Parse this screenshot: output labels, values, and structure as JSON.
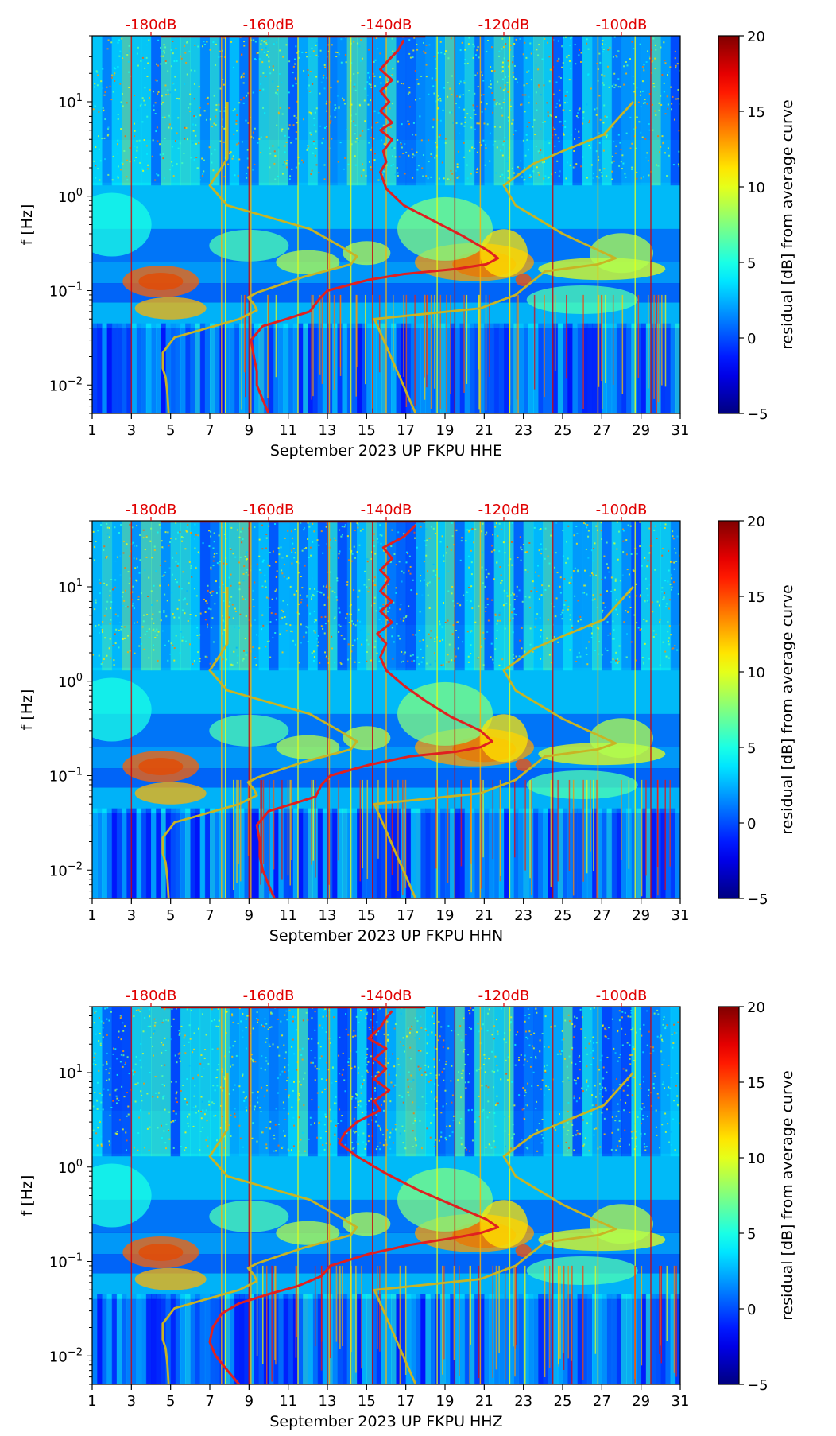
{
  "chart_data": [
    {
      "type": "heatmap",
      "title": "",
      "xlabel": "September 2023 UP FKPU  HHE",
      "ylabel": "f [Hz]",
      "x_ticks": [
        "1",
        "3",
        "5",
        "7",
        "9",
        "11",
        "13",
        "15",
        "17",
        "19",
        "21",
        "23",
        "25",
        "27",
        "29",
        "31"
      ],
      "xlim": [
        1,
        31
      ],
      "ylim": [
        0.005,
        50
      ],
      "y_ticks": [
        {
          "value": 0.01,
          "base": "10",
          "exp": "−2"
        },
        {
          "value": 0.1,
          "base": "10",
          "exp": "−1"
        },
        {
          "value": 1,
          "base": "10",
          "exp": "0"
        },
        {
          "value": 10,
          "base": "10",
          "exp": "1"
        }
      ],
      "db_axis": {
        "labels": [
          "-180dB",
          "-160dB",
          "-140dB",
          "-120dB",
          "-100dB"
        ],
        "values": [
          -180,
          -160,
          -140,
          -120,
          -100
        ],
        "range": [
          -190,
          -90
        ]
      },
      "colorbar": {
        "label": "residual [dB] from average curve",
        "range": [
          -5,
          20
        ],
        "ticks": [
          "20",
          "15",
          "10",
          "5",
          "0",
          "−5"
        ]
      },
      "series": [
        {
          "name": "low-noise model (yellow)",
          "color": "#c8b424",
          "points": [
            [
              -177,
              0.005
            ],
            [
              -177.2,
              0.008
            ],
            [
              -177.5,
              0.012
            ],
            [
              -178,
              0.015
            ],
            [
              -178,
              0.022
            ],
            [
              -176,
              0.032
            ],
            [
              -165,
              0.05
            ],
            [
              -162,
              0.062
            ],
            [
              -162.5,
              0.072
            ],
            [
              -163.5,
              0.085
            ],
            [
              -162,
              0.095
            ],
            [
              -154,
              0.14
            ],
            [
              -146,
              0.19
            ],
            [
              -145,
              0.23
            ],
            [
              -148,
              0.3
            ],
            [
              -153,
              0.45
            ],
            [
              -167,
              0.8
            ],
            [
              -170,
              1.3
            ],
            [
              -167,
              2.5
            ],
            [
              -167,
              5
            ],
            [
              -167,
              10
            ]
          ]
        },
        {
          "name": "high-noise model (yellow)",
          "color": "#c8b424",
          "points": [
            [
              -135,
              0.005
            ],
            [
              -142,
              0.05
            ],
            [
              -124,
              0.065
            ],
            [
              -118,
              0.09
            ],
            [
              -113,
              0.16
            ],
            [
              -104,
              0.19
            ],
            [
              -101,
              0.22
            ],
            [
              -110,
              0.4
            ],
            [
              -118,
              0.8
            ],
            [
              -120,
              1.3
            ],
            [
              -115,
              2.2
            ],
            [
              -110,
              3
            ],
            [
              -103,
              4.5
            ],
            [
              -98,
              10
            ]
          ]
        },
        {
          "name": "median PSD (red)",
          "color": "#e02020",
          "points": [
            [
              -160,
              0.005
            ],
            [
              -161,
              0.007
            ],
            [
              -162,
              0.01
            ],
            [
              -162,
              0.014
            ],
            [
              -162.5,
              0.02
            ],
            [
              -163,
              0.03
            ],
            [
              -161,
              0.042
            ],
            [
              -157,
              0.05
            ],
            [
              -153,
              0.06
            ],
            [
              -151.5,
              0.08
            ],
            [
              -150,
              0.1
            ],
            [
              -143,
              0.13
            ],
            [
              -137,
              0.15
            ],
            [
              -128,
              0.17
            ],
            [
              -123,
              0.19
            ],
            [
              -121,
              0.22
            ],
            [
              -122.5,
              0.26
            ],
            [
              -127,
              0.38
            ],
            [
              -132,
              0.55
            ],
            [
              -137,
              0.8
            ],
            [
              -140,
              1.2
            ],
            [
              -141,
              1.8
            ],
            [
              -140,
              2.3
            ],
            [
              -140.5,
              3
            ],
            [
              -139,
              4
            ],
            [
              -141,
              5
            ],
            [
              -139,
              6
            ],
            [
              -141,
              8
            ],
            [
              -139.5,
              10
            ],
            [
              -141,
              13
            ],
            [
              -139,
              17
            ],
            [
              -141,
              22
            ],
            [
              -139.5,
              28
            ],
            [
              -138,
              35
            ],
            [
              -137,
              45
            ]
          ]
        }
      ]
    },
    {
      "type": "heatmap",
      "title": "",
      "xlabel": "September 2023 UP FKPU  HHN",
      "ylabel": "f [Hz]",
      "x_ticks": [
        "1",
        "3",
        "5",
        "7",
        "9",
        "11",
        "13",
        "15",
        "17",
        "19",
        "21",
        "23",
        "25",
        "27",
        "29",
        "31"
      ],
      "xlim": [
        1,
        31
      ],
      "ylim": [
        0.005,
        50
      ],
      "y_ticks": [
        {
          "value": 0.01,
          "base": "10",
          "exp": "−2"
        },
        {
          "value": 0.1,
          "base": "10",
          "exp": "−1"
        },
        {
          "value": 1,
          "base": "10",
          "exp": "0"
        },
        {
          "value": 10,
          "base": "10",
          "exp": "1"
        }
      ],
      "db_axis": {
        "labels": [
          "-180dB",
          "-160dB",
          "-140dB",
          "-120dB",
          "-100dB"
        ],
        "values": [
          -180,
          -160,
          -140,
          -120,
          -100
        ],
        "range": [
          -190,
          -90
        ]
      },
      "colorbar": {
        "label": "residual [dB] from average curve",
        "range": [
          -5,
          20
        ],
        "ticks": [
          "20",
          "15",
          "10",
          "5",
          "0",
          "−5"
        ]
      },
      "series": [
        {
          "name": "low-noise model (yellow)",
          "color": "#c8b424",
          "points": [
            [
              -177,
              0.005
            ],
            [
              -177.2,
              0.008
            ],
            [
              -177.5,
              0.012
            ],
            [
              -178,
              0.015
            ],
            [
              -178,
              0.022
            ],
            [
              -176,
              0.032
            ],
            [
              -165,
              0.05
            ],
            [
              -162,
              0.062
            ],
            [
              -162.5,
              0.072
            ],
            [
              -163.5,
              0.085
            ],
            [
              -162,
              0.095
            ],
            [
              -154,
              0.14
            ],
            [
              -146,
              0.19
            ],
            [
              -145,
              0.23
            ],
            [
              -148,
              0.3
            ],
            [
              -153,
              0.45
            ],
            [
              -167,
              0.8
            ],
            [
              -170,
              1.3
            ],
            [
              -167,
              2.5
            ],
            [
              -167,
              5
            ],
            [
              -167,
              10
            ]
          ]
        },
        {
          "name": "high-noise model (yellow)",
          "color": "#c8b424",
          "points": [
            [
              -135,
              0.005
            ],
            [
              -142,
              0.05
            ],
            [
              -124,
              0.065
            ],
            [
              -118,
              0.09
            ],
            [
              -113,
              0.16
            ],
            [
              -104,
              0.19
            ],
            [
              -101,
              0.22
            ],
            [
              -110,
              0.4
            ],
            [
              -118,
              0.8
            ],
            [
              -120,
              1.3
            ],
            [
              -115,
              2.2
            ],
            [
              -110,
              3
            ],
            [
              -103,
              4.5
            ],
            [
              -98,
              10
            ]
          ]
        },
        {
          "name": "median PSD (red)",
          "color": "#e02020",
          "points": [
            [
              -159,
              0.005
            ],
            [
              -160,
              0.007
            ],
            [
              -161,
              0.01
            ],
            [
              -161.5,
              0.014
            ],
            [
              -161.5,
              0.02
            ],
            [
              -162,
              0.03
            ],
            [
              -160,
              0.042
            ],
            [
              -156,
              0.05
            ],
            [
              -152,
              0.06
            ],
            [
              -151,
              0.08
            ],
            [
              -149.5,
              0.1
            ],
            [
              -143,
              0.13
            ],
            [
              -136,
              0.16
            ],
            [
              -128,
              0.18
            ],
            [
              -124,
              0.2
            ],
            [
              -122,
              0.23
            ],
            [
              -124,
              0.3
            ],
            [
              -129,
              0.42
            ],
            [
              -133,
              0.6
            ],
            [
              -137,
              0.9
            ],
            [
              -140,
              1.3
            ],
            [
              -141,
              1.8
            ],
            [
              -140,
              2.5
            ],
            [
              -141.5,
              3.2
            ],
            [
              -139,
              4.2
            ],
            [
              -141,
              5.5
            ],
            [
              -139,
              7
            ],
            [
              -141,
              9
            ],
            [
              -139.5,
              12
            ],
            [
              -141,
              15
            ],
            [
              -139,
              20
            ],
            [
              -140.5,
              26
            ],
            [
              -137,
              34
            ],
            [
              -135,
              45
            ]
          ]
        }
      ]
    },
    {
      "type": "heatmap",
      "title": "",
      "xlabel": "September 2023 UP FKPU  HHZ",
      "ylabel": "f [Hz]",
      "x_ticks": [
        "1",
        "3",
        "5",
        "7",
        "9",
        "11",
        "13",
        "15",
        "17",
        "19",
        "21",
        "23",
        "25",
        "27",
        "29",
        "31"
      ],
      "xlim": [
        1,
        31
      ],
      "ylim": [
        0.005,
        50
      ],
      "y_ticks": [
        {
          "value": 0.01,
          "base": "10",
          "exp": "−2"
        },
        {
          "value": 0.1,
          "base": "10",
          "exp": "−1"
        },
        {
          "value": 1,
          "base": "10",
          "exp": "0"
        },
        {
          "value": 10,
          "base": "10",
          "exp": "1"
        }
      ],
      "db_axis": {
        "labels": [
          "-180dB",
          "-160dB",
          "-140dB",
          "-120dB",
          "-100dB"
        ],
        "values": [
          -180,
          -160,
          -140,
          -120,
          -100
        ],
        "range": [
          -190,
          -90
        ]
      },
      "colorbar": {
        "label": "residual [dB] from average curve",
        "range": [
          -5,
          20
        ],
        "ticks": [
          "20",
          "15",
          "10",
          "5",
          "0",
          "−5"
        ]
      },
      "series": [
        {
          "name": "low-noise model (yellow)",
          "color": "#c8b424",
          "points": [
            [
              -177,
              0.005
            ],
            [
              -177.2,
              0.008
            ],
            [
              -177.5,
              0.012
            ],
            [
              -178,
              0.015
            ],
            [
              -178,
              0.022
            ],
            [
              -176,
              0.032
            ],
            [
              -165,
              0.05
            ],
            [
              -162,
              0.062
            ],
            [
              -162.5,
              0.072
            ],
            [
              -163.5,
              0.085
            ],
            [
              -162,
              0.095
            ],
            [
              -154,
              0.14
            ],
            [
              -146,
              0.19
            ],
            [
              -145,
              0.23
            ],
            [
              -148,
              0.3
            ],
            [
              -153,
              0.45
            ],
            [
              -167,
              0.8
            ],
            [
              -170,
              1.3
            ],
            [
              -167,
              2.5
            ],
            [
              -167,
              5
            ],
            [
              -167,
              10
            ]
          ]
        },
        {
          "name": "high-noise model (yellow)",
          "color": "#c8b424",
          "points": [
            [
              -135,
              0.005
            ],
            [
              -142,
              0.05
            ],
            [
              -124,
              0.065
            ],
            [
              -118,
              0.09
            ],
            [
              -113,
              0.16
            ],
            [
              -104,
              0.19
            ],
            [
              -101,
              0.22
            ],
            [
              -110,
              0.4
            ],
            [
              -118,
              0.8
            ],
            [
              -120,
              1.3
            ],
            [
              -115,
              2.2
            ],
            [
              -110,
              3
            ],
            [
              -103,
              4.5
            ],
            [
              -98,
              10
            ]
          ]
        },
        {
          "name": "median PSD (red)",
          "color": "#e02020",
          "points": [
            [
              -165,
              0.005
            ],
            [
              -167,
              0.007
            ],
            [
              -169,
              0.01
            ],
            [
              -170,
              0.014
            ],
            [
              -169.5,
              0.02
            ],
            [
              -168,
              0.028
            ],
            [
              -165,
              0.036
            ],
            [
              -160,
              0.045
            ],
            [
              -155,
              0.055
            ],
            [
              -151,
              0.07
            ],
            [
              -149.5,
              0.09
            ],
            [
              -143,
              0.12
            ],
            [
              -136,
              0.15
            ],
            [
              -128,
              0.18
            ],
            [
              -124,
              0.2
            ],
            [
              -121,
              0.23
            ],
            [
              -123,
              0.28
            ],
            [
              -128,
              0.38
            ],
            [
              -134,
              0.55
            ],
            [
              -140,
              0.85
            ],
            [
              -145,
              1.3
            ],
            [
              -148,
              1.8
            ],
            [
              -147,
              2.3
            ],
            [
              -145,
              3
            ],
            [
              -141,
              4
            ],
            [
              -142,
              5
            ],
            [
              -139.5,
              6.5
            ],
            [
              -142,
              8.5
            ],
            [
              -140,
              11
            ],
            [
              -142,
              14
            ],
            [
              -140,
              18
            ],
            [
              -143,
              23
            ],
            [
              -141,
              30
            ],
            [
              -140,
              38
            ],
            [
              -139,
              45
            ]
          ]
        }
      ]
    }
  ]
}
